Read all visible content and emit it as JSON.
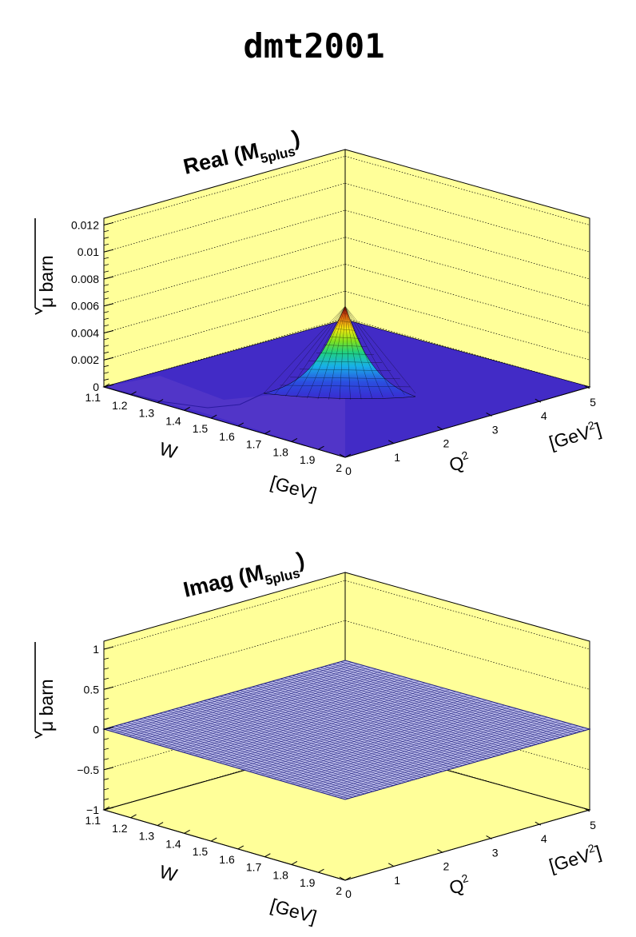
{
  "page": {
    "title": "dmt2001"
  },
  "chart_data": [
    {
      "type": "surface",
      "title_main": "Real (M",
      "title_sub": "5plus",
      "title_close": ")",
      "x_axis": {
        "label": "W",
        "unit": "[GeV]",
        "range": [
          1.1,
          2.0
        ],
        "ticks": [
          "1.1",
          "1.2",
          "1.3",
          "1.4",
          "1.5",
          "1.6",
          "1.7",
          "1.8",
          "1.9",
          "2"
        ]
      },
      "y_axis": {
        "label": "Q",
        "label_sup": "2",
        "unit": "[GeV",
        "unit_sup": "2",
        "unit_close": "]",
        "range": [
          0,
          5
        ],
        "ticks": [
          "0",
          "1",
          "2",
          "3",
          "4",
          "5"
        ]
      },
      "z_axis": {
        "label": "μ barn",
        "range": [
          0,
          0.0125
        ],
        "ticks": [
          "0",
          "0.002",
          "0.004",
          "0.006",
          "0.008",
          "0.01",
          "0.012"
        ],
        "tick_values": [
          0,
          0.002,
          0.004,
          0.006,
          0.008,
          0.01,
          0.012
        ]
      },
      "peak": {
        "W": 2.0,
        "Q2": 0,
        "value": 0.0061
      },
      "background_color": "#ffff99",
      "grid": true
    },
    {
      "type": "surface",
      "title_main": "Imag (M",
      "title_sub": "5plus",
      "title_close": ")",
      "x_axis": {
        "label": "W",
        "unit": "[GeV]",
        "range": [
          1.1,
          2.0
        ],
        "ticks": [
          "1.1",
          "1.2",
          "1.3",
          "1.4",
          "1.5",
          "1.6",
          "1.7",
          "1.8",
          "1.9",
          "2"
        ]
      },
      "y_axis": {
        "label": "Q",
        "label_sup": "2",
        "unit": "[GeV",
        "unit_sup": "2",
        "unit_close": "]",
        "range": [
          0,
          5
        ],
        "ticks": [
          "0",
          "1",
          "2",
          "3",
          "4",
          "5"
        ]
      },
      "z_axis": {
        "label": "μ barn",
        "range": [
          -1,
          1.1
        ],
        "ticks": [
          "−1",
          "−0.5",
          "0",
          "0.5",
          "1"
        ],
        "tick_values": [
          -1,
          -0.5,
          0,
          0.5,
          1
        ]
      },
      "surface_value": 0,
      "background_color": "#ffff99",
      "grid": true
    }
  ]
}
